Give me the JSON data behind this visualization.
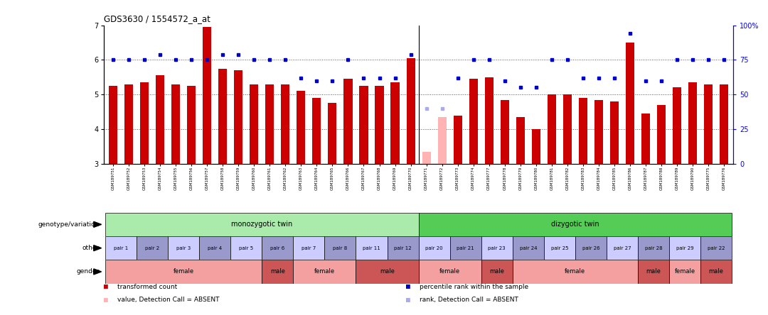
{
  "title": "GDS3630 / 1554572_a_at",
  "samples": [
    "GSM189751",
    "GSM189752",
    "GSM189753",
    "GSM189754",
    "GSM189755",
    "GSM189756",
    "GSM189757",
    "GSM189758",
    "GSM189759",
    "GSM189760",
    "GSM189761",
    "GSM189762",
    "GSM189763",
    "GSM189764",
    "GSM189765",
    "GSM189766",
    "GSM189767",
    "GSM189768",
    "GSM189769",
    "GSM189770",
    "GSM189771",
    "GSM189772",
    "GSM189773",
    "GSM189774",
    "GSM189777",
    "GSM189778",
    "GSM189779",
    "GSM189780",
    "GSM189781",
    "GSM189782",
    "GSM189783",
    "GSM189784",
    "GSM189785",
    "GSM189786",
    "GSM189787",
    "GSM189788",
    "GSM189789",
    "GSM189790",
    "GSM189775",
    "GSM189776"
  ],
  "values": [
    5.25,
    5.3,
    5.35,
    5.55,
    5.3,
    5.25,
    6.95,
    5.75,
    5.7,
    5.3,
    5.3,
    5.3,
    5.1,
    4.9,
    4.75,
    5.45,
    5.25,
    5.25,
    5.35,
    6.05,
    3.35,
    4.35,
    4.4,
    5.45,
    5.5,
    4.85,
    4.35,
    4.0,
    5.0,
    5.0,
    4.9,
    4.85,
    4.8,
    6.5,
    4.45,
    4.7,
    5.2,
    5.35,
    5.3,
    5.3
  ],
  "absent": [
    false,
    false,
    false,
    false,
    false,
    false,
    false,
    false,
    false,
    false,
    false,
    false,
    false,
    false,
    false,
    false,
    false,
    false,
    false,
    false,
    true,
    true,
    false,
    false,
    false,
    false,
    false,
    false,
    false,
    false,
    false,
    false,
    false,
    false,
    false,
    false,
    false,
    false,
    false,
    false
  ],
  "ranks": [
    75,
    75,
    75,
    79,
    75,
    75,
    75,
    79,
    79,
    75,
    75,
    75,
    62,
    60,
    60,
    75,
    62,
    62,
    62,
    79,
    40,
    40,
    62,
    75,
    75,
    60,
    55,
    55,
    75,
    75,
    62,
    62,
    62,
    94,
    60,
    60,
    75,
    75,
    75,
    75
  ],
  "rank_absent": [
    false,
    false,
    false,
    false,
    false,
    false,
    false,
    false,
    false,
    false,
    false,
    false,
    false,
    false,
    false,
    false,
    false,
    false,
    false,
    false,
    true,
    true,
    false,
    false,
    false,
    false,
    false,
    false,
    false,
    false,
    false,
    false,
    false,
    false,
    false,
    false,
    false,
    false,
    false,
    false
  ],
  "ylim_low": 3.0,
  "ylim_high": 7.0,
  "yticks": [
    3,
    4,
    5,
    6,
    7
  ],
  "right_yticks": [
    0,
    25,
    50,
    75,
    100
  ],
  "bar_color": "#cc0000",
  "bar_absent_color": "#ffb3b3",
  "rank_color": "#0000cc",
  "rank_absent_color": "#aaaaee",
  "dotted_line_color": "#555555",
  "mono_color": "#aaeaaa",
  "diz_color": "#55cc55",
  "pair_color_1": "#ccccff",
  "pair_color_2": "#9999cc",
  "female_color": "#f4a0a0",
  "male_color": "#cc5555",
  "separator_idx": 20,
  "pair_spans_mono": [
    {
      "label": "pair 1",
      "start": 0,
      "end": 2
    },
    {
      "label": "pair 2",
      "start": 2,
      "end": 4
    },
    {
      "label": "pair 3",
      "start": 4,
      "end": 6
    },
    {
      "label": "pair 4",
      "start": 6,
      "end": 8
    },
    {
      "label": "pair 5",
      "start": 8,
      "end": 10
    },
    {
      "label": "pair 6",
      "start": 10,
      "end": 12
    },
    {
      "label": "pair 7",
      "start": 12,
      "end": 14
    },
    {
      "label": "pair 8",
      "start": 14,
      "end": 16
    },
    {
      "label": "pair 11",
      "start": 16,
      "end": 18
    },
    {
      "label": "pair 12",
      "start": 18,
      "end": 20
    }
  ],
  "pair_spans_diz": [
    {
      "label": "pair 20",
      "start": 20,
      "end": 22
    },
    {
      "label": "pair 21",
      "start": 22,
      "end": 24
    },
    {
      "label": "pair 23",
      "start": 24,
      "end": 26
    },
    {
      "label": "pair 24",
      "start": 26,
      "end": 28
    },
    {
      "label": "pair 25",
      "start": 28,
      "end": 30
    },
    {
      "label": "pair 26",
      "start": 30,
      "end": 32
    },
    {
      "label": "pair 27",
      "start": 32,
      "end": 34
    },
    {
      "label": "pair 28",
      "start": 34,
      "end": 36
    },
    {
      "label": "pair 29",
      "start": 36,
      "end": 38
    },
    {
      "label": "pair 22",
      "start": 38,
      "end": 40
    }
  ],
  "gender_spans_mono": [
    {
      "label": "female",
      "start": 0,
      "end": 10,
      "gender": "female"
    },
    {
      "label": "male",
      "start": 10,
      "end": 12,
      "gender": "male"
    },
    {
      "label": "female",
      "start": 12,
      "end": 16,
      "gender": "female"
    },
    {
      "label": "male",
      "start": 16,
      "end": 20,
      "gender": "male"
    }
  ],
  "gender_spans_diz": [
    {
      "label": "female",
      "start": 20,
      "end": 24,
      "gender": "female"
    },
    {
      "label": "male",
      "start": 24,
      "end": 26,
      "gender": "male"
    },
    {
      "label": "female",
      "start": 26,
      "end": 34,
      "gender": "female"
    },
    {
      "label": "male",
      "start": 34,
      "end": 36,
      "gender": "male"
    },
    {
      "label": "female",
      "start": 36,
      "end": 38,
      "gender": "female"
    },
    {
      "label": "male",
      "start": 38,
      "end": 40,
      "gender": "male"
    }
  ]
}
